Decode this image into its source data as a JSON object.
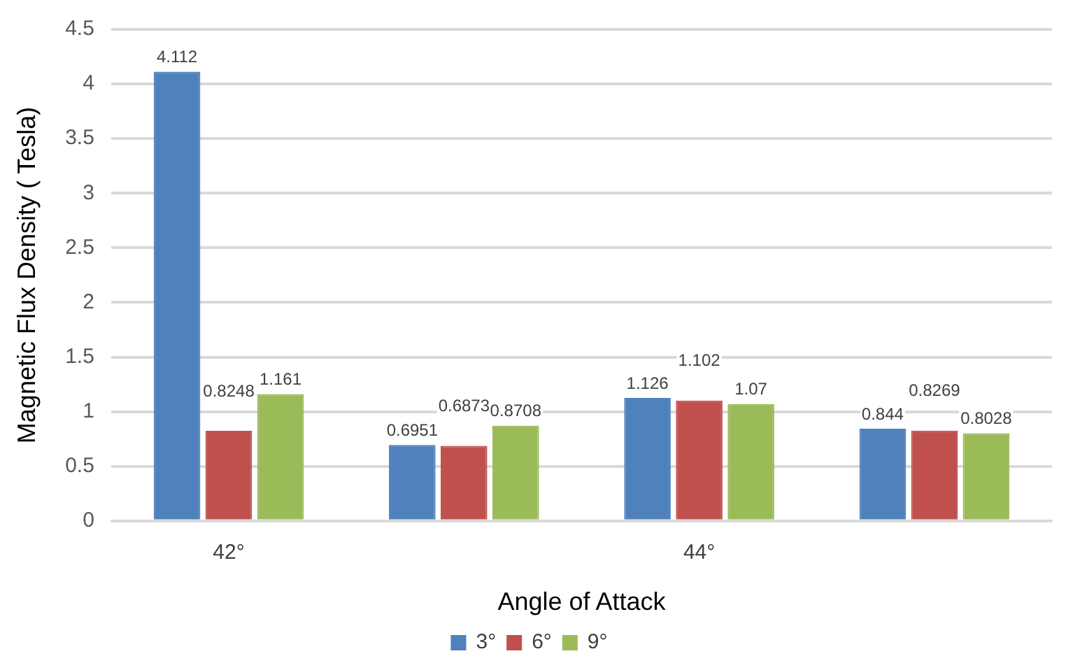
{
  "chart_data": {
    "type": "bar",
    "xlabel": "Angle of Attack",
    "ylabel": "Magnetic Flux Density ( Tesla)",
    "categories": [
      "42°",
      null,
      "44°",
      null
    ],
    "series": [
      {
        "name": "3°",
        "color": "#4f81bd",
        "values": [
          4.112,
          0.6951,
          1.126,
          0.844
        ]
      },
      {
        "name": "6°",
        "color": "#c0504d",
        "values": [
          0.8248,
          0.6873,
          1.102,
          0.8269
        ]
      },
      {
        "name": "9°",
        "color": "#9bbb59",
        "values": [
          1.161,
          0.8708,
          1.07,
          0.8028
        ]
      }
    ],
    "ylim": [
      0,
      4.5
    ],
    "yticks": [
      0,
      0.5,
      1,
      1.5,
      2,
      2.5,
      3,
      3.5,
      4,
      4.5
    ],
    "grid": "y",
    "legend": "bottom",
    "data_labels": true
  }
}
